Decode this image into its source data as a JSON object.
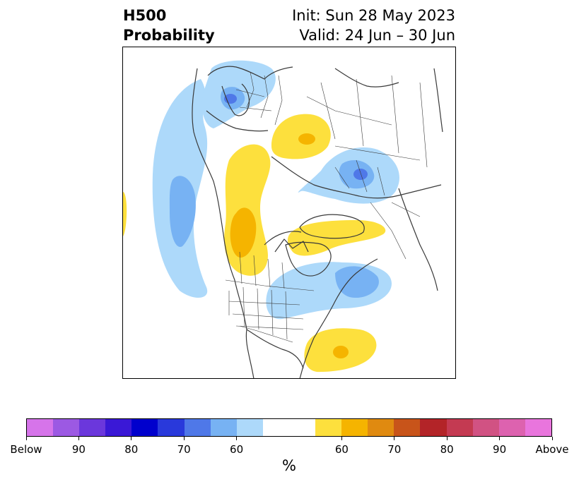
{
  "title": {
    "left_line1": "H500",
    "left_line2": "Probability",
    "init": "Init: Sun 28 May 2023",
    "valid": "Valid: 24 Jun – 30 Jun"
  },
  "colorbar": {
    "unit": "%",
    "tick_labels": [
      "Below",
      "90",
      "80",
      "70",
      "60",
      "60",
      "70",
      "80",
      "90",
      "Above"
    ],
    "colors": [
      "#d674ea",
      "#9c59e3",
      "#6b37dc",
      "#3a18d6",
      "#0000cd",
      "#2939db",
      "#4f78e8",
      "#77b2f3",
      "#add9fa",
      "#ffffff",
      "#fde03d",
      "#f5b400",
      "#e08a10",
      "#c8541a",
      "#b32428",
      "#c43a52",
      "#d15283",
      "#dd62af",
      "#e975dd"
    ]
  },
  "map": {
    "anomaly_colors": {
      "below_60": "#add9fa",
      "below_70": "#77b2f3",
      "below_80": "#4f78e8",
      "above_60": "#fde03d",
      "above_70": "#f5b400"
    }
  }
}
